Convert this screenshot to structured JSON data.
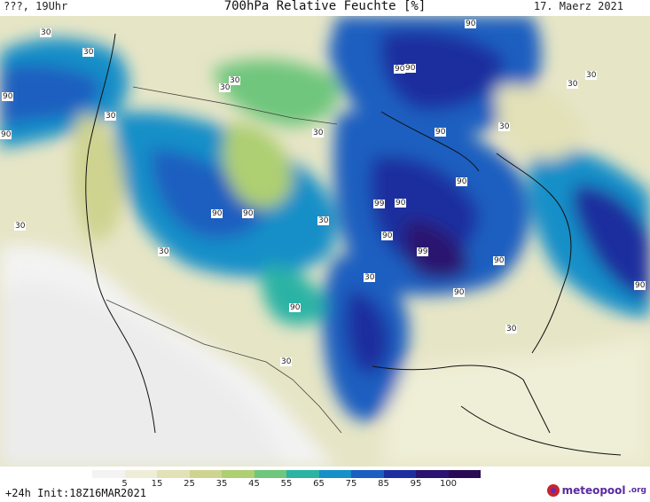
{
  "header": {
    "left": "???, 19Uhr",
    "title": "700hPa Relative Feuchte [%]",
    "date": "17. Maerz 2021"
  },
  "legend": {
    "ticks": [
      "5",
      "15",
      "25",
      "35",
      "45",
      "55",
      "65",
      "75",
      "85",
      "95",
      "100"
    ],
    "colors": [
      "#f3f3f3",
      "#eeeed8",
      "#e2e1b7",
      "#cfd390",
      "#aecf72",
      "#6fc67d",
      "#2bb3a4",
      "#178fc8",
      "#1b5fc0",
      "#1d2f9e",
      "#2a1470",
      "#2a0a55"
    ]
  },
  "contour_labels": [
    "30",
    "30",
    "90",
    "30",
    "30",
    "30",
    "30",
    "90",
    "90",
    "90",
    "90",
    "90",
    "30",
    "30",
    "30",
    "30",
    "90",
    "30",
    "99",
    "90",
    "90",
    "90",
    "30",
    "90",
    "99",
    "90",
    "90",
    "90",
    "30",
    "30",
    "30",
    "90"
  ],
  "footer": {
    "init": "+24h Init:18Z16MAR2021",
    "logo": "meteopool",
    "logo_suffix": ".org"
  }
}
